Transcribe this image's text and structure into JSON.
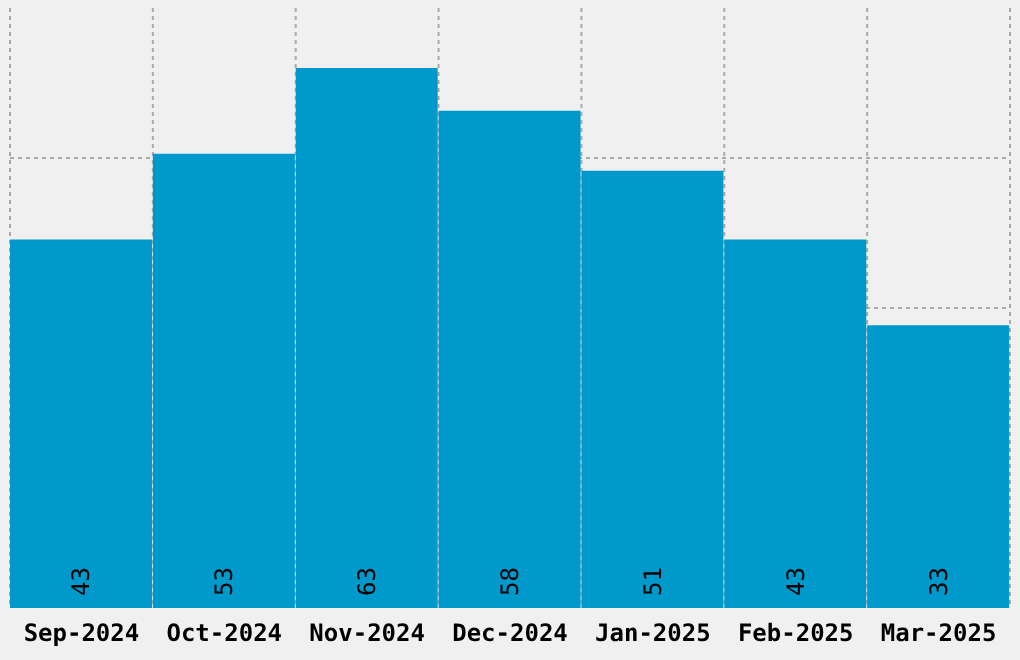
{
  "chart_data": {
    "type": "bar",
    "categories": [
      "Sep-2024",
      "Oct-2024",
      "Nov-2024",
      "Dec-2024",
      "Jan-2025",
      "Feb-2025",
      "Mar-2025"
    ],
    "values": [
      43,
      53,
      63,
      58,
      51,
      43,
      33
    ],
    "color": "#0099cc",
    "ylim": [
      0,
      70
    ],
    "tick_labels": "x",
    "grid": true,
    "data_labels": true
  }
}
